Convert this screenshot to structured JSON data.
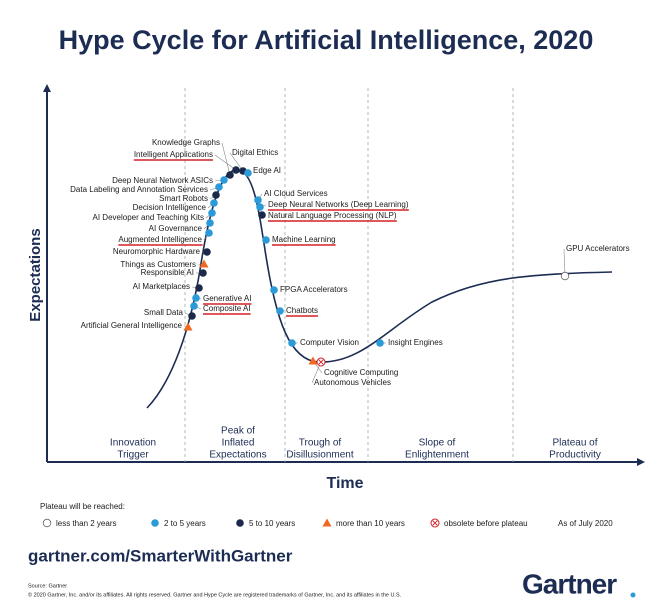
{
  "title": "Hype Cycle for Artificial Intelligence, 2020",
  "y_axis_label": "Expectations",
  "x_axis_label": "Time",
  "phases": [
    [
      "Innovation",
      "Trigger"
    ],
    [
      "Peak of",
      "Inflated",
      "Expectations"
    ],
    [
      "Trough of",
      "Disillusionment"
    ],
    [
      "Slope of",
      "Enlightenment"
    ],
    [
      "Plateau of",
      "Productivity"
    ]
  ],
  "technologies": [
    {
      "label": "Knowledge Graphs",
      "plateau": "5 to 10 years",
      "underlined": false
    },
    {
      "label": "Intelligent Applications",
      "plateau": "5 to 10 years",
      "underlined": true
    },
    {
      "label": "Digital Ethics",
      "plateau": "5 to 10 years",
      "underlined": false
    },
    {
      "label": "Edge AI",
      "plateau": "2 to 5 years",
      "underlined": false
    },
    {
      "label": "Deep Neural Network ASICs",
      "plateau": "2 to 5 years",
      "underlined": false
    },
    {
      "label": "Data Labeling and Annotation Services",
      "plateau": "2 to 5 years",
      "underlined": false
    },
    {
      "label": "Smart Robots",
      "plateau": "5 to 10 years",
      "underlined": false
    },
    {
      "label": "Decision Intelligence",
      "plateau": "2 to 5 years",
      "underlined": false
    },
    {
      "label": "AI Developer and Teaching Kits",
      "plateau": "2 to 5 years",
      "underlined": false
    },
    {
      "label": "AI Governance",
      "plateau": "2 to 5 years",
      "underlined": false
    },
    {
      "label": "Augmented Intelligence",
      "plateau": "2 to 5 years",
      "underlined": true
    },
    {
      "label": "Neuromorphic Hardware",
      "plateau": "5 to 10 years",
      "underlined": false
    },
    {
      "label": "Things as Customers",
      "plateau": "more than 10 years",
      "underlined": false
    },
    {
      "label": "Responsible AI",
      "plateau": "5 to 10 years",
      "underlined": false
    },
    {
      "label": "AI Marketplaces",
      "plateau": "5 to 10 years",
      "underlined": false
    },
    {
      "label": "Generative AI",
      "plateau": "2 to 5 years",
      "underlined": true
    },
    {
      "label": "Composite AI",
      "plateau": "2 to 5 years",
      "underlined": true
    },
    {
      "label": "Small Data",
      "plateau": "5 to 10 years",
      "underlined": false
    },
    {
      "label": "Artificial General Intelligence",
      "plateau": "more than 10 years",
      "underlined": false
    },
    {
      "label": "AI Cloud Services",
      "plateau": "2 to 5 years",
      "underlined": false
    },
    {
      "label": "Deep Neural Networks (Deep Learning)",
      "plateau": "2 to 5 years",
      "underlined": true
    },
    {
      "label": "Natural Language Processing (NLP)",
      "plateau": "5 to 10 years",
      "underlined": true
    },
    {
      "label": "Machine Learning",
      "plateau": "2 to 5 years",
      "underlined": true
    },
    {
      "label": "FPGA Accelerators",
      "plateau": "2 to 5 years",
      "underlined": false
    },
    {
      "label": "Chatbots",
      "plateau": "2 to 5 years",
      "underlined": true
    },
    {
      "label": "Computer Vision",
      "plateau": "2 to 5 years",
      "underlined": false
    },
    {
      "label": "Cognitive Computing",
      "plateau": "more than 10 years",
      "underlined": false
    },
    {
      "label": "Autonomous Vehicles",
      "plateau": "obsolete before plateau",
      "underlined": false
    },
    {
      "label": "Insight Engines",
      "plateau": "2 to 5 years",
      "underlined": false
    },
    {
      "label": "GPU Accelerators",
      "plateau": "less than 2 years",
      "underlined": false
    }
  ],
  "legend": {
    "title": "Plateau will be reached:",
    "items": [
      "less than 2 years",
      "2 to 5 years",
      "5 to 10 years",
      "more than 10 years",
      "obsolete before plateau"
    ]
  },
  "as_of": "As of July 2020",
  "url": "gartner.com/SmarterWithGartner",
  "source": [
    "Source: Gartner",
    "© 2020 Gartner, Inc. and/or its affiliates. All rights reserved. Gartner and Hype Cycle are registered trademarks of Gartner, Inc. and its affiliates in the U.S."
  ],
  "logo": "Gartner"
}
